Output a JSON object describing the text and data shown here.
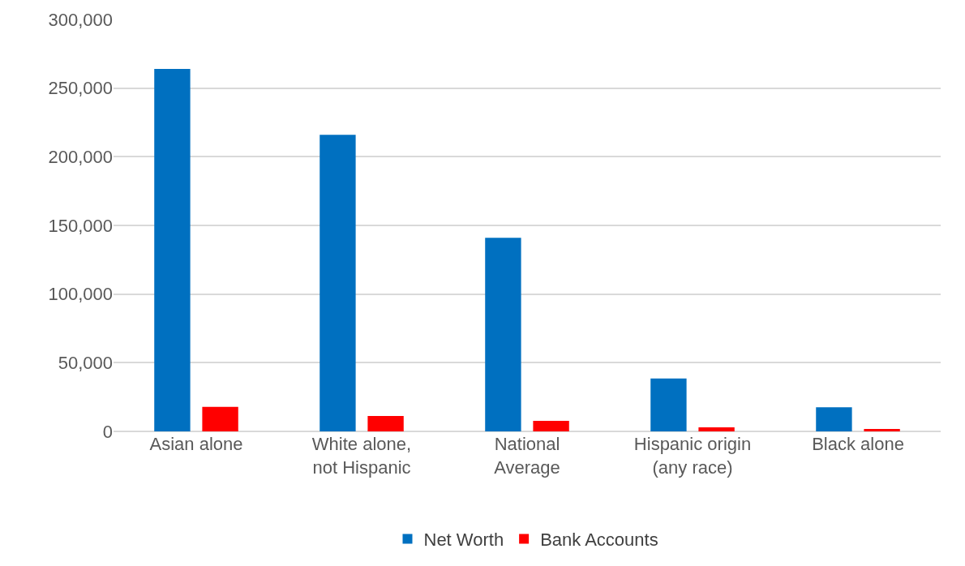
{
  "chart_data": {
    "type": "bar",
    "categories": [
      "Asian alone",
      "White alone,\nnot Hispanic",
      "National\nAverage",
      "Hispanic origin\n(any race)",
      "Black alone"
    ],
    "series": [
      {
        "name": "Net Worth",
        "color": "#0070c0",
        "values": [
          264000,
          216000,
          141000,
          38500,
          17600
        ]
      },
      {
        "name": "Bank Accounts",
        "color": "#ff0000",
        "values": [
          17900,
          11200,
          7700,
          2900,
          1800
        ]
      }
    ],
    "ylim": [
      0,
      300000
    ],
    "yticks": [
      {
        "value": 0,
        "label": "0"
      },
      {
        "value": 50000,
        "label": "50,000"
      },
      {
        "value": 100000,
        "label": "100,000"
      },
      {
        "value": 150000,
        "label": "150,000"
      },
      {
        "value": 200000,
        "label": "200,000"
      },
      {
        "value": 250000,
        "label": "250,000"
      },
      {
        "value": 300000,
        "label": "300,000"
      }
    ],
    "grid": "y",
    "legend": "bottom"
  }
}
